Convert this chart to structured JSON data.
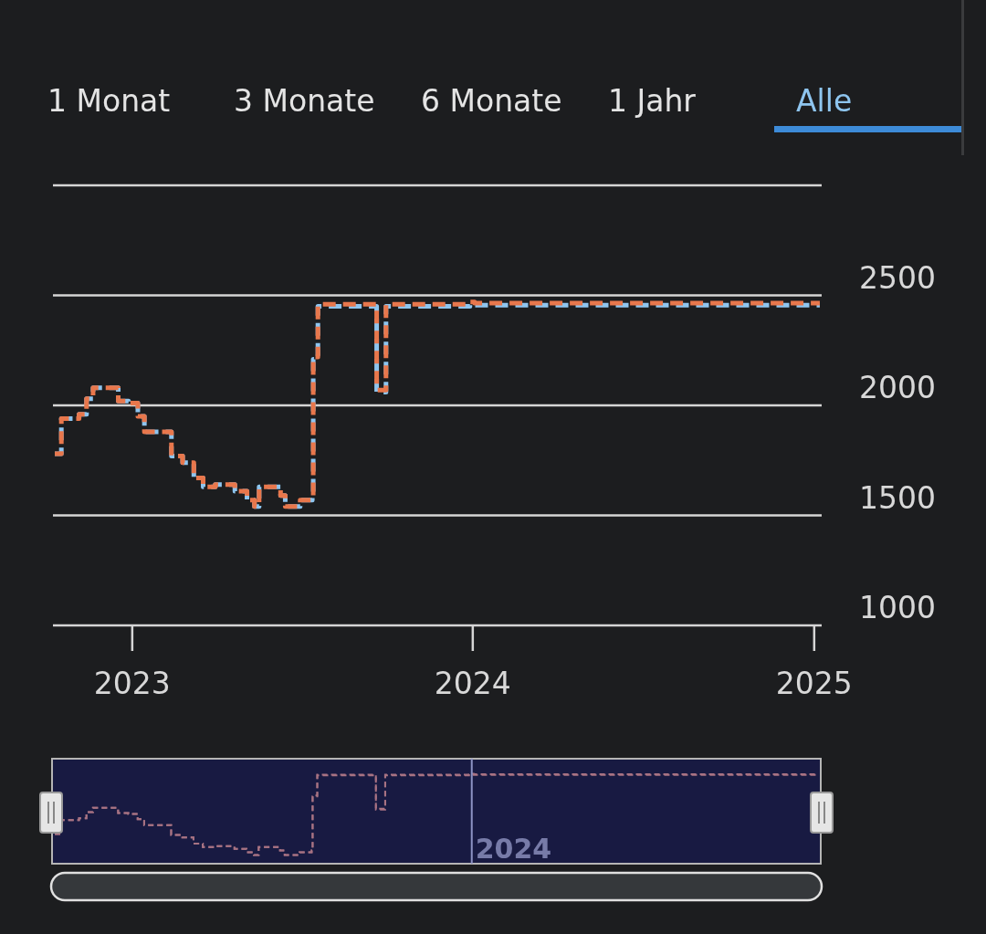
{
  "chart_data": {
    "type": "step",
    "annotations": [
      "1 Monat",
      "3 Monate",
      "6 Monate",
      "1 Jahr",
      "Alle"
    ],
    "xlim": [
      "2022-10-08",
      "2025-01-09"
    ],
    "xticks": [
      {
        "value": "2023-01-01",
        "label": "2023"
      },
      {
        "value": "2024-01-01",
        "label": "2024"
      },
      {
        "value": "2025-01-01",
        "label": "2025"
      }
    ],
    "ylim": [
      1000,
      3000
    ],
    "yticks": [
      1000,
      1500,
      2000,
      2500,
      {
        "value": 3000,
        "label": null
      }
    ],
    "grid": "y",
    "line_style": "dashed",
    "x": [
      "2022-10-10",
      "2022-10-17",
      "2022-11-05",
      "2022-11-13",
      "2022-11-20",
      "2022-12-17",
      "2022-12-28",
      "2023-01-07",
      "2023-01-14",
      "2023-02-12",
      "2023-02-24",
      "2023-03-08",
      "2023-03-18",
      "2023-03-31",
      "2023-04-21",
      "2023-05-04",
      "2023-05-12",
      "2023-05-17",
      "2023-06-09",
      "2023-06-14",
      "2023-06-30",
      "2023-07-13",
      "2023-07-14",
      "2023-07-19",
      "2023-09-20",
      "2023-09-30",
      "2023-12-29",
      "2024-01-03",
      "2025-01-07"
    ],
    "series": [
      {
        "color": "#8ec5ef",
        "values": [
          1780,
          1940,
          1960,
          2030,
          2080,
          2020,
          2010,
          1950,
          1880,
          1770,
          1740,
          1670,
          1630,
          1640,
          1610,
          1570,
          1540,
          1630,
          1590,
          1540,
          1570,
          1590,
          2210,
          2450,
          2060,
          2450,
          2460,
          2455,
          2455
        ]
      },
      {
        "color": "#e8774c",
        "values": [
          1780,
          1940,
          1960,
          2030,
          2080,
          2020,
          2010,
          1950,
          1880,
          1770,
          1740,
          1670,
          1630,
          1640,
          1610,
          1570,
          1540,
          1630,
          1590,
          1540,
          1570,
          1590,
          2220,
          2460,
          2070,
          2460,
          2470,
          2465,
          2465
        ]
      }
    ]
  }
}
